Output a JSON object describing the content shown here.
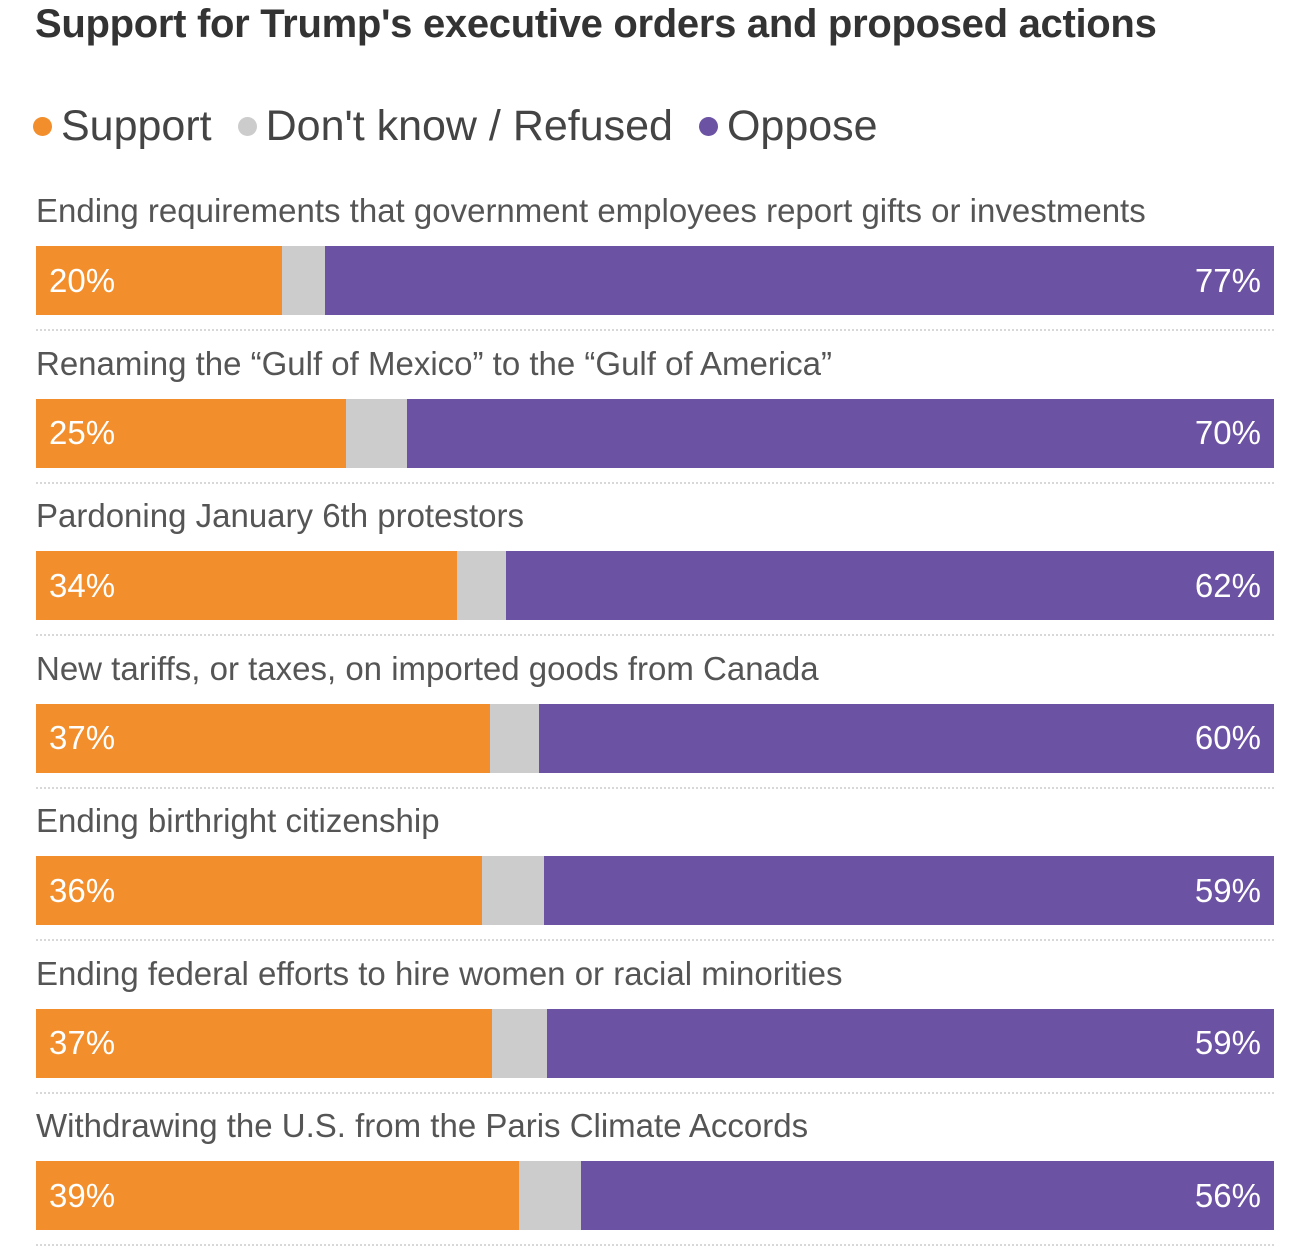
{
  "title": "Support for Trump's executive orders and proposed actions",
  "colors": {
    "support": "#F28E2B",
    "dont_know": "#CCCCCC",
    "oppose": "#6B52A3"
  },
  "legend": [
    {
      "key": "support",
      "label": "Support"
    },
    {
      "key": "dont_know",
      "label": "Don't know / Refused"
    },
    {
      "key": "oppose",
      "label": "Oppose"
    }
  ],
  "chart_data": {
    "type": "bar",
    "stacked": true,
    "orientation": "horizontal",
    "title": "Support for Trump's executive orders and proposed actions",
    "categories": [
      "Ending requirements that government employees report gifts or investments",
      "Renaming the “Gulf of Mexico” to the “Gulf of America”",
      "Pardoning January 6th protestors",
      "New tariffs, or taxes, on imported goods from Canada",
      "Ending birthright citizenship",
      "Ending federal efforts to hire women or racial minorities",
      "Withdrawing the U.S. from the Paris Climate Accords"
    ],
    "series": [
      {
        "name": "Support",
        "values": [
          20,
          25,
          34,
          37,
          36,
          37,
          39
        ]
      },
      {
        "name": "Don't know / Refused",
        "values": [
          3.5,
          5,
          4,
          4,
          5,
          4.5,
          5
        ]
      },
      {
        "name": "Oppose",
        "values": [
          77,
          70,
          62,
          60,
          59,
          59,
          56
        ]
      }
    ],
    "value_labels": {
      "support": [
        "20%",
        "25%",
        "34%",
        "37%",
        "36%",
        "37%",
        "39%"
      ],
      "oppose": [
        "77%",
        "70%",
        "62%",
        "60%",
        "59%",
        "59%",
        "56%"
      ]
    },
    "unit": "%",
    "legend_position": "top-left"
  }
}
